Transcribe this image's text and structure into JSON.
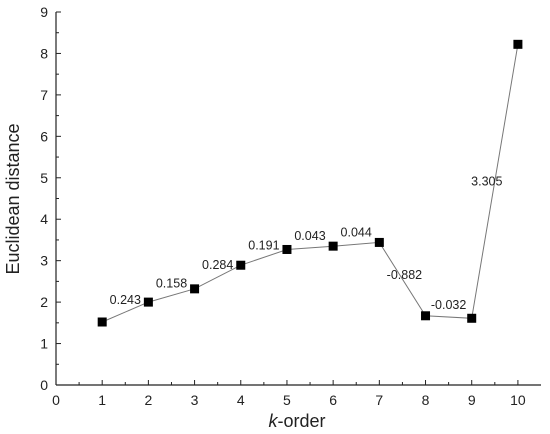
{
  "chart_data": {
    "type": "line",
    "xlabel_italic": "k",
    "xlabel_rest": "-order",
    "ylabel": "Euclidean distance",
    "xlim": [
      0,
      10.5
    ],
    "ylim": [
      0,
      9
    ],
    "xticks": [
      0,
      1,
      2,
      3,
      4,
      5,
      6,
      7,
      8,
      9,
      10
    ],
    "yticks": [
      0,
      1,
      2,
      3,
      4,
      5,
      6,
      7,
      8,
      9
    ],
    "grid": false,
    "series": [
      {
        "x": [
          1,
          2,
          3,
          4,
          5,
          6,
          7,
          8,
          9,
          10
        ],
        "y": [
          1.52,
          2.0,
          2.32,
          2.89,
          3.27,
          3.35,
          3.44,
          1.67,
          1.61,
          8.22
        ]
      }
    ],
    "annotations": [
      {
        "text": "0.243",
        "between": [
          1,
          2
        ]
      },
      {
        "text": "0.158",
        "between": [
          2,
          3
        ]
      },
      {
        "text": "0.284",
        "between": [
          3,
          4
        ]
      },
      {
        "text": "0.191",
        "between": [
          4,
          5
        ]
      },
      {
        "text": "0.043",
        "between": [
          5,
          6
        ]
      },
      {
        "text": "0.044",
        "between": [
          6,
          7
        ]
      },
      {
        "text": "-0.882",
        "between": [
          7,
          8
        ]
      },
      {
        "text": "-0.032",
        "between": [
          8,
          9
        ]
      },
      {
        "text": "3.305",
        "between": [
          9,
          10
        ]
      }
    ]
  }
}
